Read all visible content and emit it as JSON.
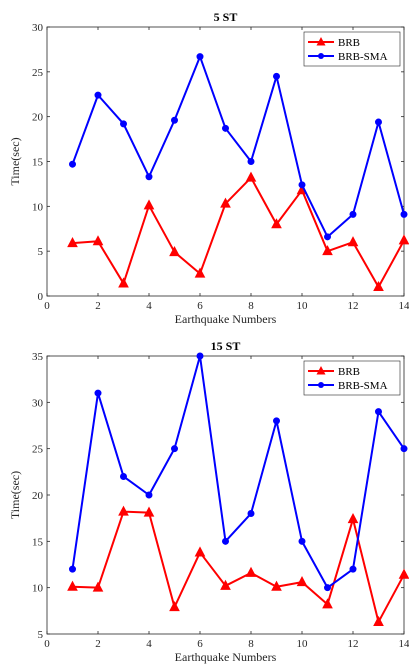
{
  "chart_data": [
    {
      "type": "line",
      "title": "5 ST",
      "xlabel": "Earthquake Numbers",
      "ylabel": "Time(sec)",
      "xlim": [
        0,
        14
      ],
      "ylim": [
        0,
        30
      ],
      "xticks": [
        0,
        2,
        4,
        6,
        8,
        10,
        12,
        14
      ],
      "yticks": [
        0,
        5,
        10,
        15,
        20,
        25,
        30
      ],
      "legend_position": "top-right",
      "x": [
        1,
        2,
        3,
        4,
        5,
        6,
        7,
        8,
        9,
        10,
        11,
        12,
        13,
        14
      ],
      "series": [
        {
          "name": "BRB",
          "color": "#ff0000",
          "marker": "triangle",
          "values": [
            5.9,
            6.1,
            1.4,
            10.1,
            4.9,
            2.5,
            10.3,
            13.2,
            8.0,
            11.8,
            5.0,
            6.0,
            1.0,
            6.2
          ]
        },
        {
          "name": "BRB-SMA",
          "color": "#0000ff",
          "marker": "circle",
          "values": [
            14.7,
            22.4,
            19.2,
            13.3,
            19.6,
            26.7,
            18.7,
            15.0,
            24.5,
            12.4,
            6.6,
            9.1,
            19.4,
            9.1
          ]
        }
      ]
    },
    {
      "type": "line",
      "title": "15 ST",
      "xlabel": "Earthquake Numbers",
      "ylabel": "Time(sec)",
      "xlim": [
        0,
        14
      ],
      "ylim": [
        5,
        35
      ],
      "xticks": [
        0,
        2,
        4,
        6,
        8,
        10,
        12,
        14
      ],
      "yticks": [
        5,
        10,
        15,
        20,
        25,
        30,
        35
      ],
      "legend_position": "top-right",
      "x": [
        1,
        2,
        3,
        4,
        5,
        6,
        7,
        8,
        9,
        10,
        11,
        12,
        13,
        14
      ],
      "series": [
        {
          "name": "BRB",
          "color": "#ff0000",
          "marker": "triangle",
          "values": [
            10.1,
            10.0,
            18.2,
            18.1,
            7.9,
            13.8,
            10.2,
            11.6,
            10.1,
            10.6,
            8.2,
            17.4,
            6.3,
            11.4
          ]
        },
        {
          "name": "BRB-SMA",
          "color": "#0000ff",
          "marker": "circle",
          "values": [
            12.0,
            31.0,
            22.0,
            20.0,
            25.0,
            35.0,
            15.0,
            18.0,
            28.0,
            15.0,
            10.0,
            12.0,
            29.0,
            25.0
          ]
        }
      ]
    }
  ]
}
